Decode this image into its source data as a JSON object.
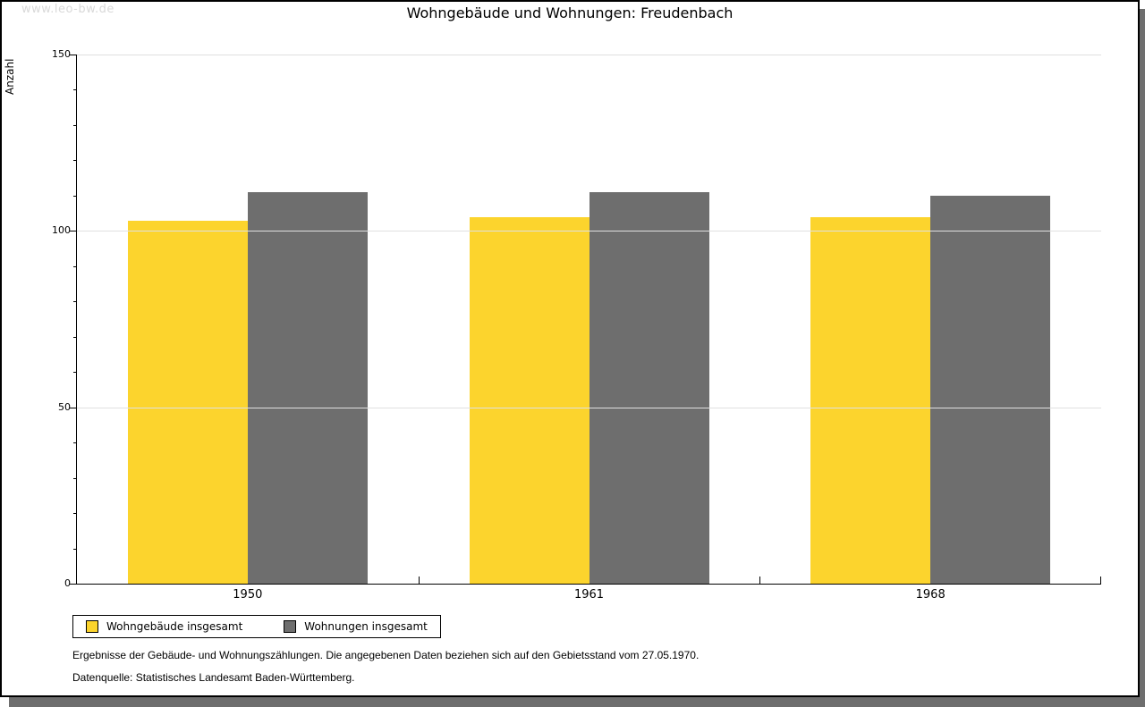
{
  "watermark": "www.leo-bw.de",
  "header": {
    "title": "Wohngebäude und Wohnungen: Freudenbach"
  },
  "chart_data": {
    "type": "bar",
    "title": "Wohngebäude und Wohnungen: Freudenbach",
    "ylabel": "Anzahl",
    "xlabel": "",
    "ylim": [
      0,
      150
    ],
    "yticks_major": [
      0,
      50,
      100,
      150
    ],
    "ytick_minor_step": 10,
    "grid": true,
    "legend_position": "bottom-left",
    "categories": [
      "1950",
      "1961",
      "1968"
    ],
    "series": [
      {
        "name": "Wohngebäude insgesamt",
        "color": "#fcd42d",
        "values": [
          103,
          104,
          104
        ]
      },
      {
        "name": "Wohnungen insgesamt",
        "color": "#6e6e6e",
        "values": [
          111,
          111,
          110
        ]
      }
    ]
  },
  "footer": {
    "line1": "Ergebnisse der Gebäude- und Wohnungszählungen. Die angegebenen Daten beziehen sich auf den Gebietsstand vom 27.05.1970.",
    "line2": "Datenquelle: Statistisches Landesamt Baden-Württemberg."
  },
  "colors": {
    "bar_yellow": "#fcd42d",
    "bar_gray": "#6e6e6e",
    "grid": "#e0e0e0",
    "axis": "#000000",
    "watermark": "#d9d9d9",
    "shadow": "#6e6e6e"
  }
}
